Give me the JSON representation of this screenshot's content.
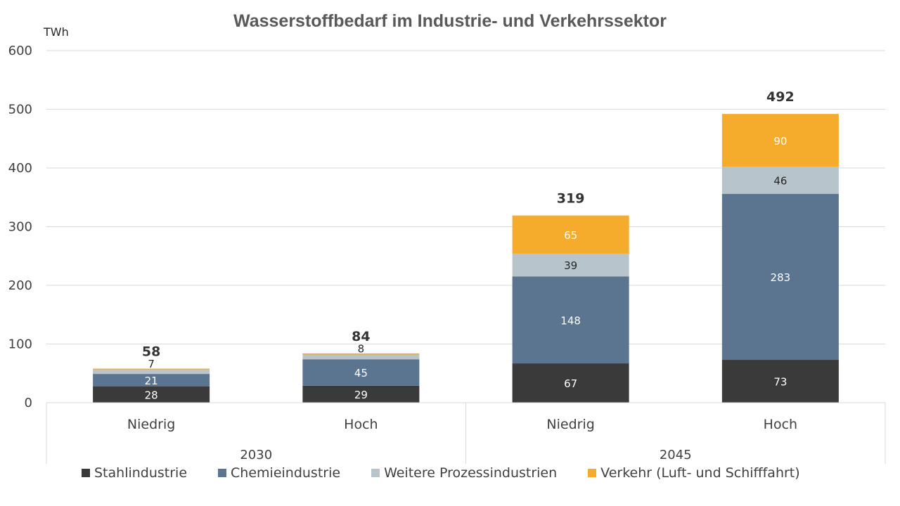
{
  "chart_data": {
    "type": "bar",
    "stacked": true,
    "title": "Wasserstoffbedarf im Industrie- und Verkehrssektor",
    "ylabel": "TWh",
    "ylim": [
      0,
      600
    ],
    "yticks": [
      0,
      100,
      200,
      300,
      400,
      500,
      600
    ],
    "groups": [
      {
        "label": "2030",
        "categories": [
          "Niedrig",
          "Hoch"
        ]
      },
      {
        "label": "2045",
        "categories": [
          "Niedrig",
          "Hoch"
        ]
      }
    ],
    "categories": [
      "Niedrig",
      "Hoch",
      "Niedrig",
      "Hoch"
    ],
    "series": [
      {
        "name": "Stahlindustrie",
        "color": "#3a3a3a",
        "label_color": "#ffffff",
        "values": [
          28,
          29,
          67,
          73
        ]
      },
      {
        "name": "Chemieindustrie",
        "color": "#5b7490",
        "label_color": "#ffffff",
        "values": [
          21,
          45,
          148,
          283
        ]
      },
      {
        "name": "Weitere Prozessindustrien",
        "color": "#b8c4cc",
        "label_color": "#262626",
        "values": [
          7,
          8,
          39,
          46
        ]
      },
      {
        "name": "Verkehr (Luft- und Schifffahrt)",
        "color": "#f5ab2b",
        "label_color": "#ffffff",
        "values": [
          2,
          2,
          65,
          90
        ]
      }
    ],
    "segment_labels": [
      [
        "28",
        "29",
        "67",
        "73"
      ],
      [
        "21",
        "45",
        "148",
        "283"
      ],
      [
        "7",
        "8",
        "39",
        "46"
      ],
      [
        "",
        "",
        "65",
        "90"
      ]
    ],
    "totals": [
      "58",
      "84",
      "319",
      "492"
    ],
    "grid": true,
    "legend_position": "bottom"
  }
}
